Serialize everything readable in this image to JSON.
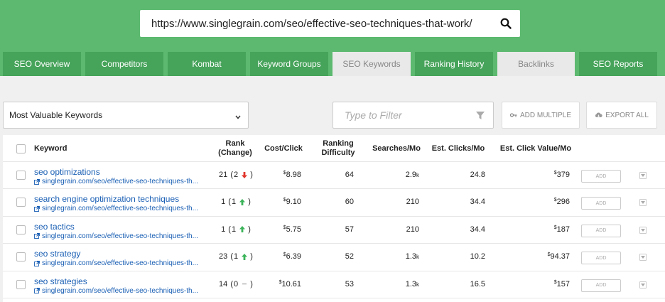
{
  "search": {
    "url": "https://www.singlegrain.com/seo/effective-seo-techniques-that-work/"
  },
  "tabs": [
    {
      "label": "SEO Overview",
      "active": false
    },
    {
      "label": "Competitors",
      "active": false
    },
    {
      "label": "Kombat",
      "active": false
    },
    {
      "label": "Keyword Groups",
      "active": false
    },
    {
      "label": "SEO Keywords",
      "active": true
    },
    {
      "label": "Ranking History",
      "active": false
    },
    {
      "label": "Backlinks",
      "active": true
    },
    {
      "label": "SEO Reports",
      "active": false
    }
  ],
  "controls": {
    "dropdown_value": "Most Valuable Keywords",
    "filter_placeholder": "Type to Filter",
    "add_multiple_label": "ADD MULTIPLE",
    "export_all_label": "EXPORT ALL"
  },
  "table": {
    "headers": {
      "keyword": "Keyword",
      "rank_line1": "Rank",
      "rank_line2": "(Change)",
      "cost": "Cost/Click",
      "diff_line1": "Ranking",
      "diff_line2": "Difficulty",
      "searches": "Searches/Mo",
      "clicks": "Est. Clicks/Mo",
      "value": "Est. Click Value/Mo"
    },
    "add_label": "ADD",
    "rows": [
      {
        "keyword": "seo optimizations",
        "url": "singlegrain.com/seo/effective-seo-techniques-th...",
        "rank": "21",
        "change": "2",
        "dir": "down",
        "cost_sym": "$",
        "cost": "8.98",
        "difficulty": "64",
        "searches": "2.9",
        "searches_unit": "k",
        "clicks": "24.8",
        "value_sym": "$",
        "value": "379"
      },
      {
        "keyword": "search engine optimization techniques",
        "url": "singlegrain.com/seo/effective-seo-techniques-th...",
        "rank": "1",
        "change": "1",
        "dir": "up",
        "cost_sym": "$",
        "cost": "9.10",
        "difficulty": "60",
        "searches": "210",
        "searches_unit": "",
        "clicks": "34.4",
        "value_sym": "$",
        "value": "296"
      },
      {
        "keyword": "seo tactics",
        "url": "singlegrain.com/seo/effective-seo-techniques-th...",
        "rank": "1",
        "change": "1",
        "dir": "up",
        "cost_sym": "$",
        "cost": "5.75",
        "difficulty": "57",
        "searches": "210",
        "searches_unit": "",
        "clicks": "34.4",
        "value_sym": "$",
        "value": "187"
      },
      {
        "keyword": "seo strategy",
        "url": "singlegrain.com/seo/effective-seo-techniques-th...",
        "rank": "23",
        "change": "1",
        "dir": "up",
        "cost_sym": "$",
        "cost": "6.39",
        "difficulty": "52",
        "searches": "1.3",
        "searches_unit": "k",
        "clicks": "10.2",
        "value_sym": "$",
        "value": "94.37"
      },
      {
        "keyword": "seo strategies",
        "url": "singlegrain.com/seo/effective-seo-techniques-th...",
        "rank": "14",
        "change": "0",
        "dir": "none",
        "cost_sym": "$",
        "cost": "10.61",
        "difficulty": "53",
        "searches": "1.3",
        "searches_unit": "k",
        "clicks": "16.5",
        "value_sym": "$",
        "value": "157"
      }
    ]
  },
  "colors": {
    "header_green": "#5cb96f",
    "tab_green": "#46a35a",
    "link_blue": "#1a5fb4",
    "up_green": "#3cb45a",
    "down_red": "#e0352b"
  }
}
